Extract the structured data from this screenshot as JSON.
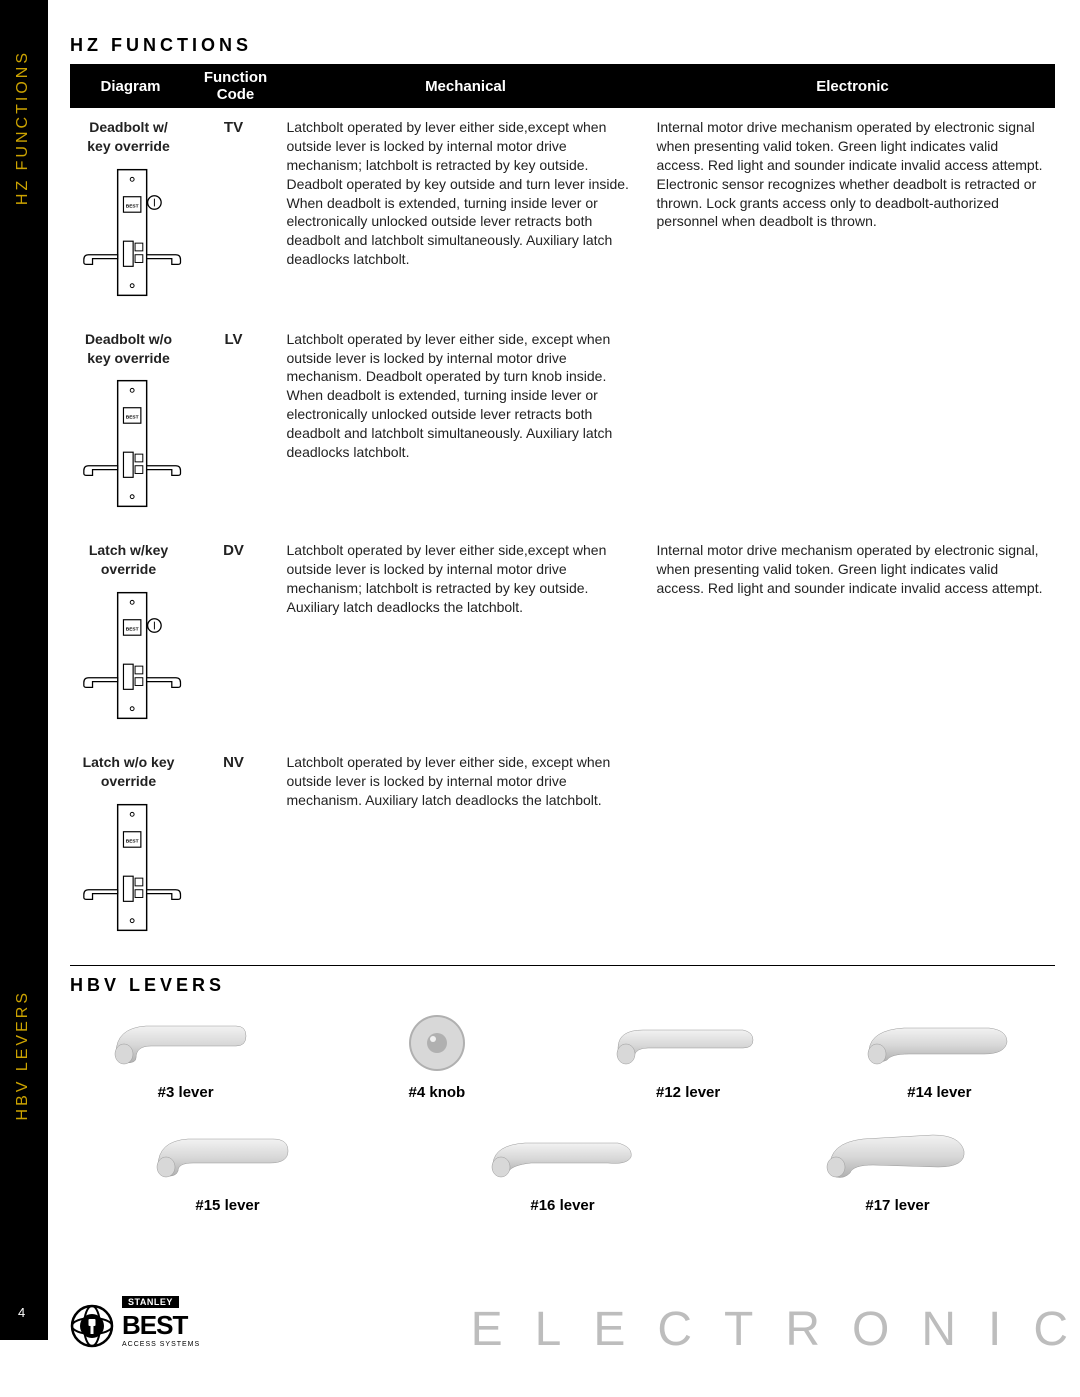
{
  "sidebar": {
    "label1": "Hz Functions",
    "label2": "HBV Levers",
    "page_number": "4",
    "bg_color": "#000000",
    "text_color": "#cca300"
  },
  "section1": {
    "title": "Hz Functions",
    "headers": [
      "Diagram",
      "Function Code",
      "Mechanical",
      "Electronic"
    ],
    "header_bg": "#000000",
    "header_fg": "#ffffff",
    "rows": [
      {
        "diagram_label": "Deadbolt w/ key override",
        "code": "TV",
        "mechanical": "Latchbolt operated by lever either side,except when outside lever is locked by internal motor drive mechanism; latchbolt is retracted by key outside. Deadbolt operated by key outside and turn lever inside. When deadbolt is extended, turning inside lever or electronically unlocked  outside lever retracts both deadbolt and latchbolt simultaneously. Auxiliary latch deadlocks latchbolt.",
        "electronic": "Internal motor drive mechanism operated by electronic signal when presenting valid token. Green light indicates valid access. Red light and sounder indicate invalid access attempt. Electronic sensor recognizes whether deadbolt is retracted or thrown. Lock grants access only to deadbolt-authorized personnel when deadbolt is thrown."
      },
      {
        "diagram_label": "Deadbolt w/o key override",
        "code": "LV",
        "mechanical": "Latchbolt operated by lever either side, except when outside lever is locked by internal motor drive mechanism. Deadbolt operated by turn knob inside. When deadbolt is extended, turning inside lever or electronically unlocked outside lever retracts both deadbolt and latchbolt simultaneously. Auxiliary latch deadlocks latchbolt.",
        "electronic": ""
      },
      {
        "diagram_label": "Latch w/key override",
        "code": "DV",
        "mechanical": "Latchbolt operated by lever either side,except when outside lever is locked by internal motor drive mechanism; latchbolt is retracted by key outside. Auxiliary latch deadlocks the latchbolt.",
        "electronic": "Internal motor drive mechanism operated by electronic signal, when presenting valid token. Green light indicates valid access. Red light and sounder indicate invalid access attempt."
      },
      {
        "diagram_label": "Latch w/o key override",
        "code": "NV",
        "mechanical": "Latchbolt operated by lever either side, except when outside lever is locked by internal motor drive mechanism. Auxiliary latch deadlocks the latchbolt.",
        "electronic": ""
      }
    ]
  },
  "section2": {
    "title": "HBV Levers",
    "row1": [
      {
        "label": "#3 lever"
      },
      {
        "label": "#4 knob"
      },
      {
        "label": "#12  lever"
      },
      {
        "label": "#14  lever"
      }
    ],
    "row2": [
      {
        "label": "#15  lever"
      },
      {
        "label": "#16  lever"
      },
      {
        "label": "#17  lever"
      }
    ]
  },
  "footer": {
    "brand_tag": "STANLEY",
    "brand_name": "BEST",
    "brand_sub": "ACCESS SYSTEMS",
    "large_text": "ELECTRONIC"
  },
  "styling": {
    "title_fontsize": 18,
    "title_letterspacing": 4,
    "body_fontsize": 14,
    "lever_label_fontsize": 15,
    "diagram_stroke": "#000000",
    "diagram_fill": "#ffffff",
    "lever_fill_light": "#d8d8d8",
    "lever_fill_dark": "#b0b0b0",
    "page_bg": "#ffffff"
  }
}
